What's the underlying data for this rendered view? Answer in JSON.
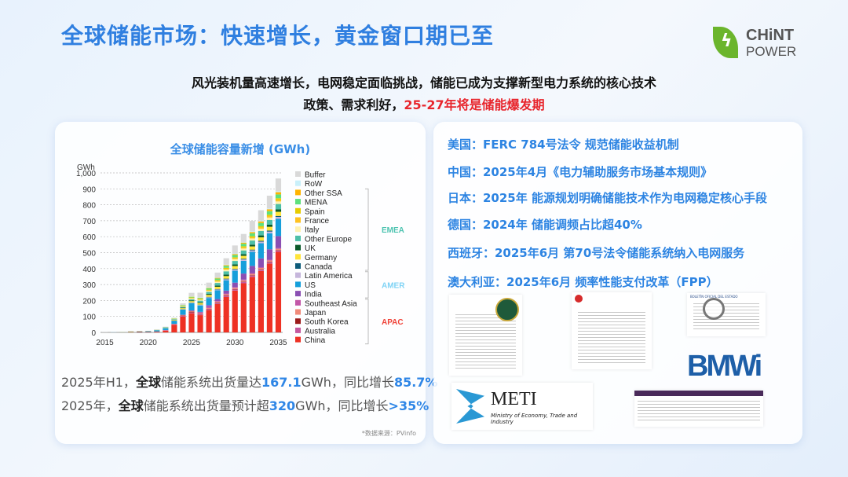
{
  "title": "全球储能市场：快速增长，黄金窗口期已至",
  "logo": {
    "line1": "CHiNT",
    "line2": "POWER"
  },
  "subtitle": {
    "line1": "风光装机量高速增长，电网稳定面临挑战，储能已成为支撑新型电力系统的核心技术",
    "line2_prefix": "政策、需求利好，",
    "line2_highlight": "25-27年将是储能爆发期"
  },
  "stats": [
    {
      "a": "2025年H1，",
      "b": "全球",
      "c": "储能系统出货量达",
      "d": "167.1",
      "e": "GWh，同比增长",
      "f": "85.7%"
    },
    {
      "a": "2025年，",
      "b": "全球",
      "c": "储能系统出货量预计超",
      "d": "320",
      "e": "GWh，同比增长",
      "f": ">35%"
    }
  ],
  "source": "*数据来源：PVinfo",
  "policies": [
    "美国：FERC 784号法令 规范储能收益机制",
    "中国：2025年4月《电力辅助服务市场基本规则》",
    "日本：2025年 能源规划明确储能技术作为电网稳定核心手段",
    "德国：2024年 储能调频占比超40%",
    "西班牙：2025年6月 第70号法令储能系统纳入电网服务",
    "澳大利亚：2025年6月 频率性能支付改革（FPP）"
  ],
  "images": {
    "bmwi": "BMWi",
    "meti": "METI",
    "meti_sub": "Ministry of Economy, Trade and Industry",
    "boe": "BOLETÍN OFICIAL DEL ESTADO"
  },
  "chart_data": {
    "type": "bar",
    "stacked": true,
    "title": "全球储能容量新增 (GWh)",
    "ylabel": "GWh",
    "ylim": [
      0,
      1000
    ],
    "yticks": [
      "0",
      "100",
      "200",
      "300",
      "400",
      "500",
      "600",
      "700",
      "800",
      "900",
      "1,000"
    ],
    "xticks": [
      "2015",
      "2020",
      "2025",
      "2030",
      "2035"
    ],
    "categories": [
      2015,
      2016,
      2017,
      2018,
      2019,
      2020,
      2021,
      2022,
      2023,
      2024,
      2025,
      2026,
      2027,
      2028,
      2029,
      2030,
      2031,
      2032,
      2033,
      2034,
      2035
    ],
    "regions": [
      {
        "name": "EMEA",
        "color": "#4dc3b0"
      },
      {
        "name": "AMER",
        "color": "#7fd3f5"
      },
      {
        "name": "APAC",
        "color": "#f0443a"
      }
    ],
    "series": [
      {
        "name": "China",
        "color": "#ee3124",
        "values": [
          0,
          0,
          0,
          0,
          0,
          1,
          3,
          10,
          48,
          100,
          120,
          108,
          140,
          178,
          222,
          262,
          308,
          348,
          385,
          432,
          505
        ]
      },
      {
        "name": "Australia",
        "color": "#c4589f",
        "values": [
          0,
          0,
          0,
          0,
          0,
          1,
          1,
          2,
          3,
          4,
          5,
          6,
          6,
          6,
          7,
          7,
          8,
          8,
          8,
          8,
          8
        ]
      },
      {
        "name": "South Korea",
        "color": "#9b1b1b",
        "values": [
          0,
          0,
          0,
          2,
          4,
          2,
          2,
          1,
          1,
          2,
          5,
          2,
          2,
          3,
          3,
          3,
          3,
          3,
          3,
          3,
          3
        ]
      },
      {
        "name": "Japan",
        "color": "#f08a7a",
        "values": [
          0,
          0,
          0,
          0,
          0,
          0,
          0,
          1,
          1,
          2,
          3,
          4,
          5,
          6,
          7,
          7,
          7,
          8,
          8,
          8,
          8
        ]
      },
      {
        "name": "Southeast Asia",
        "color": "#c257a8",
        "values": [
          0,
          0,
          0,
          0,
          0,
          0,
          0,
          1,
          1,
          2,
          3,
          6,
          10,
          4,
          5,
          5,
          5,
          5,
          5,
          5,
          5
        ]
      },
      {
        "name": "India",
        "color": "#8a4fb3",
        "values": [
          0,
          0,
          0,
          0,
          0,
          0,
          0,
          0,
          0,
          1,
          2,
          3,
          8,
          12,
          18,
          28,
          38,
          45,
          55,
          65,
          75
        ]
      },
      {
        "name": "US",
        "color": "#169fdb",
        "values": [
          0,
          1,
          1,
          1,
          1,
          3,
          8,
          12,
          18,
          32,
          45,
          40,
          45,
          55,
          65,
          75,
          80,
          88,
          95,
          100,
          108
        ]
      },
      {
        "name": "Latin America",
        "color": "#c5b6dc",
        "values": [
          0,
          0,
          0,
          0,
          0,
          0,
          0,
          1,
          1,
          2,
          3,
          3,
          4,
          5,
          6,
          7,
          8,
          9,
          10,
          11,
          12
        ]
      },
      {
        "name": "Canada",
        "color": "#0d5b7a",
        "values": [
          0,
          0,
          0,
          0,
          0,
          0,
          0,
          0,
          1,
          1,
          2,
          2,
          3,
          3,
          4,
          4,
          5,
          5,
          5,
          6,
          6
        ]
      },
      {
        "name": "Germany",
        "color": "#ffe43a",
        "values": [
          0,
          0,
          1,
          2,
          1,
          1,
          1,
          2,
          4,
          6,
          8,
          10,
          12,
          14,
          16,
          18,
          18,
          20,
          22,
          24,
          26
        ]
      },
      {
        "name": "UK",
        "color": "#0b5a2a",
        "values": [
          0,
          0,
          0,
          1,
          1,
          1,
          1,
          1,
          2,
          3,
          5,
          5,
          6,
          8,
          10,
          10,
          10,
          11,
          12,
          13,
          15
        ]
      },
      {
        "name": "Other Europe",
        "color": "#4dbfa7",
        "values": [
          0,
          0,
          0,
          0,
          0,
          0,
          0,
          1,
          3,
          5,
          7,
          10,
          13,
          16,
          20,
          22,
          24,
          26,
          28,
          30,
          34
        ]
      },
      {
        "name": "Italy",
        "color": "#fff2b0",
        "values": [
          0,
          0,
          0,
          0,
          0,
          0,
          1,
          1,
          2,
          3,
          5,
          5,
          6,
          8,
          10,
          11,
          12,
          13,
          14,
          15,
          16
        ]
      },
      {
        "name": "France",
        "color": "#ffc21f",
        "values": [
          0,
          0,
          0,
          0,
          0,
          0,
          0,
          0,
          1,
          2,
          3,
          3,
          4,
          5,
          6,
          6,
          7,
          7,
          8,
          9,
          10
        ]
      },
      {
        "name": "Spain",
        "color": "#e6cc00",
        "values": [
          0,
          0,
          0,
          0,
          0,
          0,
          0,
          0,
          1,
          2,
          3,
          3,
          4,
          5,
          6,
          6,
          7,
          7,
          8,
          9,
          10
        ]
      },
      {
        "name": "MENA",
        "color": "#5ee07e",
        "values": [
          0,
          0,
          0,
          0,
          0,
          0,
          0,
          1,
          2,
          3,
          4,
          5,
          8,
          10,
          12,
          14,
          16,
          18,
          20,
          22,
          24
        ]
      },
      {
        "name": "Other SSA",
        "color": "#ffb400",
        "values": [
          0,
          0,
          0,
          0,
          0,
          0,
          0,
          0,
          0,
          1,
          1,
          2,
          3,
          4,
          5,
          6,
          7,
          8,
          10,
          12,
          14
        ]
      },
      {
        "name": "RoW",
        "color": "#c9f0fa",
        "values": [
          0,
          0,
          0,
          0,
          0,
          0,
          0,
          0,
          1,
          1,
          2,
          2,
          3,
          3,
          3,
          4,
          4,
          5,
          5,
          5,
          6
        ]
      },
      {
        "name": "Buffer",
        "color": "#d9d9d9",
        "values": [
          1,
          1,
          2,
          2,
          1,
          1,
          1,
          2,
          3,
          10,
          22,
          30,
          30,
          30,
          40,
          50,
          50,
          65,
          65,
          80,
          80
        ]
      }
    ]
  }
}
